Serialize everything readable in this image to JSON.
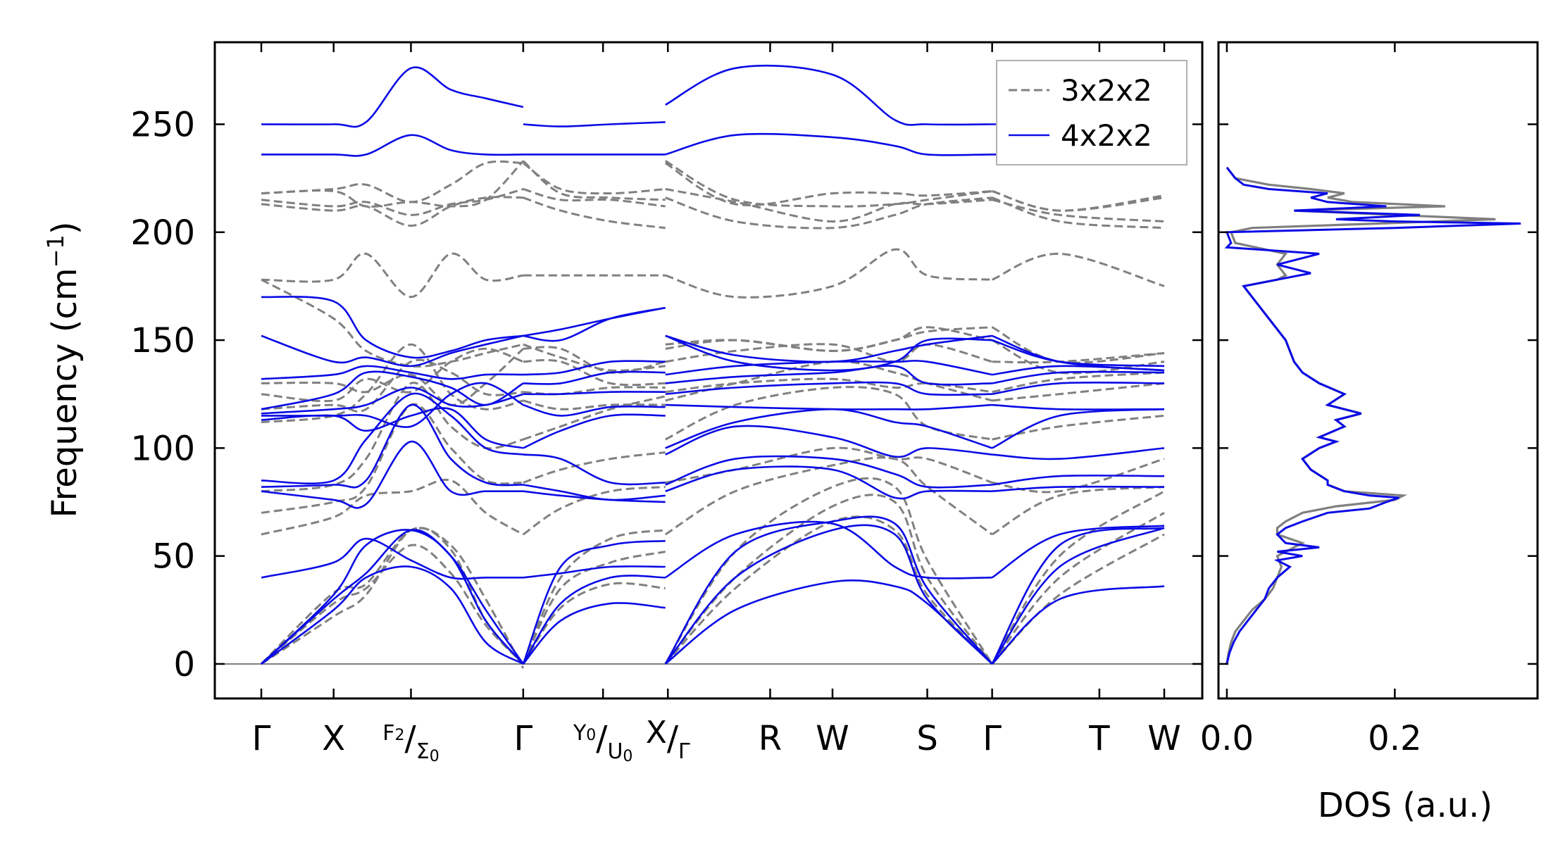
{
  "chart_data": [
    {
      "type": "line",
      "panel": "phonon-band-structure",
      "ylabel": "Frequency (cm",
      "ylabel_sup": "-1",
      "ylabel_close": ")",
      "ylim": [
        -16,
        288
      ],
      "yticks": [
        0,
        50,
        100,
        150,
        200,
        250
      ],
      "kpath_ticks": [
        {
          "label": "Γ",
          "pos": 0.0
        },
        {
          "label": "X",
          "pos": 0.145
        },
        {
          "label": "F",
          "sub": "2",
          "pos": 0.3,
          "slash": true,
          "second": "Σ",
          "second_sub": "0"
        },
        {
          "label": "Γ",
          "pos": 0.525
        },
        {
          "label": "Y",
          "sub": "0",
          "pos": 0.685,
          "slash": true,
          "second": "U",
          "second_sub": "0"
        },
        {
          "label": "X",
          "pos": 0.815,
          "slash": true,
          "second": "Γ"
        },
        {
          "label": "R",
          "pos": 1.02
        },
        {
          "label": "W",
          "pos": 1.145
        },
        {
          "label": "S",
          "pos": 1.335
        },
        {
          "label": "Γ",
          "pos": 1.465
        },
        {
          "label": "T",
          "pos": 1.68
        },
        {
          "label": "W",
          "pos": 1.81
        }
      ],
      "segments": [
        [
          0.0,
          0.525
        ],
        [
          0.525,
          0.81
        ],
        [
          0.81,
          1.465
        ],
        [
          1.465,
          1.81
        ]
      ],
      "legend": [
        {
          "name": "3x2x2",
          "style": "dashed",
          "color": "#808080"
        },
        {
          "name": "4x2x2",
          "style": "solid",
          "color": "#0a0ae6"
        }
      ],
      "series": [
        {
          "name": "3x2x2",
          "color": "#808080",
          "bands": [
            [
              0,
              22,
              32,
              62,
              53,
              20,
              0,
              0,
              26,
              37,
              35,
              0,
              35,
              66,
              62,
              32,
              0,
              0,
              32,
              60
            ],
            [
              0,
              28,
              35,
              55,
              42,
              18,
              0,
              0,
              35,
              47,
              52,
              0,
              40,
              73,
              75,
              40,
              0,
              0,
              40,
              70
            ],
            [
              0,
              33,
              37,
              62,
              55,
              30,
              -2,
              0,
              40,
              58,
              62,
              0,
              52,
              82,
              82,
              48,
              0,
              0,
              50,
              80
            ],
            [
              60,
              68,
              78,
              80,
              85,
              70,
              60,
              60,
              72,
              80,
              82,
              60,
              80,
              92,
              95,
              82,
              60,
              60,
              78,
              82
            ],
            [
              70,
              75,
              82,
              120,
              100,
              85,
              84,
              84,
              90,
              95,
              98,
              84,
              90,
              100,
              95,
              95,
              84,
              84,
              80,
              95
            ],
            [
              80,
              83,
              95,
              130,
              110,
              100,
              104,
              104,
              110,
              118,
              124,
              104,
              120,
              128,
              125,
              110,
              104,
              104,
              110,
              115
            ],
            [
              112,
              115,
              125,
              148,
              125,
              118,
              122,
              122,
              118,
              120,
              120,
              122,
              130,
              140,
              135,
              130,
              122,
              122,
              125,
              130
            ],
            [
              118,
              120,
              118,
              140,
              135,
              125,
              126,
              126,
              125,
              128,
              128,
              126,
              130,
              132,
              128,
              130,
              126,
              126,
              132,
              135
            ],
            [
              125,
              122,
              132,
              126,
              140,
              146,
              140,
              140,
              140,
              130,
              130,
              140,
              145,
              148,
              140,
              148,
              140,
              140,
              140,
              144
            ],
            [
              130,
              130,
              126,
              134,
              120,
              130,
              146,
              146,
              146,
              135,
              140,
              146,
              150,
              145,
              150,
              156,
              150,
              150,
              135,
              140
            ],
            [
              178,
              160,
              145,
              138,
              140,
              144,
              148,
              148,
              142,
              136,
              138,
              148,
              150,
              145,
              150,
              154,
              156,
              156,
              140,
              144
            ],
            [
              178,
              178,
              190,
              170,
              190,
              178,
              180,
              180,
              180,
              180,
              180,
              180,
              170,
              175,
              192,
              180,
              178,
              178,
              190,
              175
            ],
            [
              213,
              210,
              212,
              203,
              212,
              216,
              216,
              216,
              210,
              205,
              202,
              216,
              205,
              202,
              208,
              213,
              216,
              216,
              205,
              202
            ],
            [
              215,
              212,
              214,
              208,
              213,
              215,
              220,
              220,
              215,
              215,
              212,
              220,
              214,
              205,
              213,
              213,
              215,
              215,
              208,
              205
            ],
            [
              218,
              219,
              212,
              214,
              212,
              215,
              233,
              233,
              218,
              216,
              215,
              233,
              215,
              212,
              213,
              215,
              219,
              219,
              210,
              216
            ],
            [
              218,
              220,
              222,
              214,
              222,
              232,
              232,
              232,
              220,
              218,
              220,
              232,
              213,
              218,
              218,
              217,
              219,
              219,
              210,
              217
            ]
          ]
        },
        {
          "name": "4x2x2",
          "color": "#0a0ae6",
          "bands": [
            [
              0,
              25,
              40,
              45,
              35,
              10,
              0,
              0,
              20,
              28,
              26,
              0,
              25,
              38,
              36,
              28,
              0,
              0,
              30,
              36
            ],
            [
              0,
              30,
              42,
              62,
              50,
              25,
              0,
              0,
              28,
              40,
              40,
              0,
              40,
              62,
              60,
              30,
              0,
              0,
              45,
              63
            ],
            [
              0,
              32,
              55,
              62,
              50,
              20,
              0,
              0,
              45,
              55,
              57,
              0,
              52,
              66,
              65,
              35,
              0,
              0,
              55,
              63
            ],
            [
              40,
              47,
              58,
              48,
              40,
              40,
              40,
              40,
              42,
              45,
              45,
              40,
              60,
              65,
              45,
              40,
              40,
              40,
              60,
              64
            ],
            [
              80,
              76,
              74,
              103,
              80,
              80,
              80,
              80,
              78,
              76,
              75,
              80,
              90,
              90,
              77,
              80,
              80,
              80,
              82,
              82
            ],
            [
              82,
              83,
              85,
              120,
              95,
              84,
              83,
              83,
              80,
              76,
              78,
              83,
              95,
              95,
              88,
              82,
              83,
              83,
              87,
              87
            ],
            [
              85,
              85,
              104,
              125,
              115,
              100,
              97,
              97,
              95,
              84,
              84,
              97,
              110,
              105,
              96,
              100,
              97,
              97,
              95,
              100
            ],
            [
              113,
              115,
              108,
              115,
              118,
              104,
              100,
              100,
              108,
              115,
              115,
              100,
              112,
              118,
              112,
              110,
              100,
              100,
              115,
              118
            ],
            [
              115,
              115,
              115,
              110,
              125,
              130,
              120,
              120,
              115,
              119,
              119,
              120,
              119,
              118,
              118,
              118,
              120,
              120,
              118,
              118
            ],
            [
              116,
              118,
              120,
              128,
              120,
              120,
              125,
              125,
              125,
              126,
              126,
              125,
              128,
              130,
              130,
              125,
              125,
              125,
              130,
              130
            ],
            [
              118,
              125,
              135,
              133,
              128,
              120,
              130,
              130,
              130,
              135,
              135,
              130,
              133,
              135,
              138,
              130,
              130,
              130,
              135,
              135
            ],
            [
              132,
              134,
              138,
              135,
              132,
              134,
              134,
              134,
              135,
              140,
              140,
              134,
              138,
              140,
              140,
              140,
              134,
              134,
              138,
              136
            ],
            [
              152,
              140,
              142,
              138,
              144,
              148,
              152,
              152,
              150,
              160,
              165,
              152,
              143,
              140,
              145,
              148,
              152,
              152,
              140,
              136
            ],
            [
              170,
              168,
              150,
              142,
              145,
              150,
              152,
              152,
              155,
              160,
              165,
              152,
              140,
              136,
              140,
              150,
              150,
              150,
              140,
              138
            ],
            [
              236,
              236,
              236,
              245,
              238,
              236,
              236,
              236,
              236,
              236,
              236,
              236,
              245,
              244,
              240,
              236,
              236,
              236,
              236,
              236
            ],
            [
              250,
              250,
              251,
              276,
              266,
              262,
              258,
              250,
              249,
              250,
              251,
              259,
              276,
              273,
              252,
              250,
              250,
              250,
              250,
              250
            ]
          ]
        }
      ]
    },
    {
      "type": "line",
      "panel": "density-of-states",
      "xlabel": "DOS (a.u.)",
      "xlim": [
        -0.01,
        0.37
      ],
      "xticks": [
        "0.0",
        "0.2"
      ],
      "xtick_values": [
        0.0,
        0.2
      ],
      "ylim": [
        -16,
        288
      ],
      "series": [
        {
          "name": "3x2x2",
          "color": "#808080",
          "freq": [
            0,
            5,
            10,
            15,
            20,
            25,
            30,
            35,
            40,
            45,
            50,
            53,
            56,
            60,
            63,
            66,
            70,
            73,
            76,
            78,
            80,
            83,
            85,
            90,
            95,
            100,
            103,
            105,
            110,
            113,
            116,
            120,
            125,
            130,
            135,
            140,
            150,
            160,
            170,
            175,
            178,
            180,
            185,
            190,
            195,
            200,
            202,
            204,
            206,
            208,
            210,
            212,
            214,
            216,
            218,
            220,
            222,
            225,
            230
          ],
          "dos": [
            0,
            0.002,
            0.005,
            0.01,
            0.02,
            0.03,
            0.045,
            0.055,
            0.06,
            0.065,
            0.06,
            0.075,
            0.09,
            0.06,
            0.06,
            0.07,
            0.09,
            0.13,
            0.2,
            0.21,
            0.14,
            0.12,
            0.12,
            0.1,
            0.09,
            0.11,
            0.13,
            0.11,
            0.14,
            0.13,
            0.16,
            0.12,
            0.14,
            0.11,
            0.09,
            0.08,
            0.07,
            0.05,
            0.03,
            0.02,
            0.06,
            0.07,
            0.06,
            0.07,
            0.01,
            0.005,
            0.03,
            0.18,
            0.32,
            0.2,
            0.08,
            0.26,
            0.15,
            0.12,
            0.14,
            0.1,
            0.05,
            0.01,
            0
          ]
        },
        {
          "name": "4x2x2",
          "color": "#0a0ae6",
          "freq": [
            0,
            5,
            10,
            15,
            20,
            25,
            30,
            35,
            40,
            45,
            48,
            50,
            52,
            54,
            56,
            60,
            63,
            66,
            70,
            72,
            75,
            77,
            78,
            80,
            83,
            85,
            90,
            95,
            100,
            103,
            105,
            110,
            113,
            116,
            120,
            125,
            130,
            135,
            140,
            150,
            160,
            170,
            175,
            178,
            181,
            185,
            190,
            193,
            195,
            200,
            202,
            204,
            205,
            206,
            208,
            210,
            212,
            214,
            216,
            218,
            220,
            222,
            225,
            230
          ],
          "dos": [
            0,
            0.003,
            0.008,
            0.015,
            0.025,
            0.035,
            0.045,
            0.05,
            0.06,
            0.075,
            0.06,
            0.09,
            0.06,
            0.11,
            0.07,
            0.06,
            0.07,
            0.09,
            0.12,
            0.17,
            0.19,
            0.205,
            0.17,
            0.14,
            0.12,
            0.12,
            0.1,
            0.09,
            0.11,
            0.13,
            0.11,
            0.14,
            0.13,
            0.16,
            0.12,
            0.14,
            0.11,
            0.09,
            0.08,
            0.07,
            0.05,
            0.03,
            0.02,
            0.06,
            0.1,
            0.06,
            0.11,
            0.0,
            0.005,
            0.0,
            0.2,
            0.35,
            0.2,
            0.13,
            0.23,
            0.08,
            0.19,
            0.12,
            0.1,
            0.12,
            0.05,
            0.02,
            0.01,
            0
          ]
        }
      ]
    }
  ]
}
